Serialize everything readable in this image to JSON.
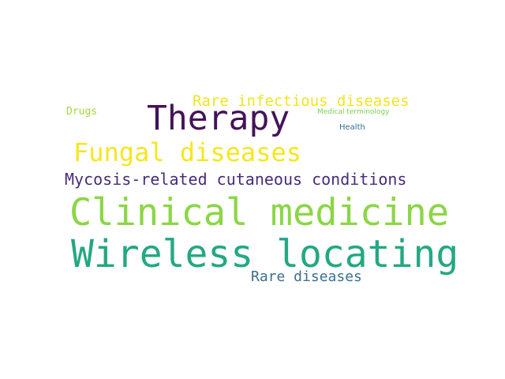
{
  "words": [
    {
      "id": "wireless",
      "text": "Wireless locating",
      "color": "#23a883"
    },
    {
      "id": "clinical",
      "text": "Clinical medicine",
      "color": "#8bd646"
    },
    {
      "id": "therapy",
      "text": "Therapy",
      "color": "#44135a"
    },
    {
      "id": "fungal",
      "text": "Fungal diseases",
      "color": "#f6e61f"
    },
    {
      "id": "mycosis",
      "text": "Mycosis-related cutaneous conditions",
      "color": "#472c7a"
    },
    {
      "id": "rareinf",
      "text": "Rare infectious diseases",
      "color": "#f2e51d"
    },
    {
      "id": "rare",
      "text": "Rare diseases",
      "color": "#3b6f8e"
    },
    {
      "id": "drugs",
      "text": "Drugs",
      "color": "#9fda3a"
    },
    {
      "id": "medterm",
      "text": "Medical terminology",
      "color": "#7ad151"
    },
    {
      "id": "health",
      "text": "Health",
      "color": "#2c728e"
    }
  ]
}
